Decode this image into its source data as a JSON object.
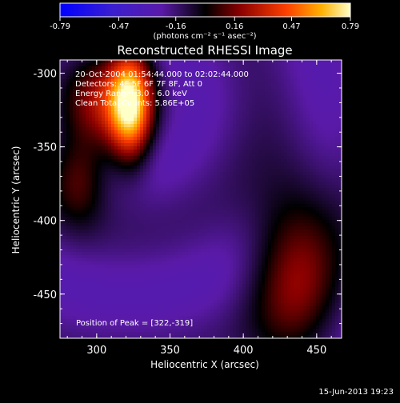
{
  "chart_data": {
    "type": "heatmap",
    "title": "Reconstructed RHESSI Image",
    "xlabel": "Heliocentric X (arcsec)",
    "ylabel": "Heliocentric Y (arcsec)",
    "xlim": [
      275,
      467
    ],
    "ylim": [
      -480,
      -291
    ],
    "xticks": [
      300,
      350,
      400,
      450
    ],
    "yticks": [
      -300,
      -350,
      -400,
      -450
    ],
    "annotations": [
      "20-Oct-2004 01:54:44.000 to 02:02:44.000",
      "Detectors: 4F 5F 6F 7F 8F, Att 0",
      "Energy Range: 3.0 - 6.0 keV",
      "Clean   Total Counts: 5.86E+05"
    ],
    "peak_label": "Position of Peak = [322,-319]",
    "peak": [
      322,
      -319
    ],
    "colorbar": {
      "ticks": [
        -0.79,
        -0.47,
        -0.16,
        0.16,
        0.47,
        0.79
      ],
      "range": [
        -0.79,
        0.79
      ],
      "unit_label": "(photons cm⁻² s⁻¹ asec⁻²)"
    },
    "sources": [
      {
        "x": 323,
        "y": -322,
        "sx": 10,
        "sy": 26,
        "amp": 0.79
      },
      {
        "x": 302,
        "y": -318,
        "sx": 22,
        "sy": 24,
        "amp": 0.45
      },
      {
        "x": 288,
        "y": -372,
        "sx": 14,
        "sy": 22,
        "amp": 0.3
      },
      {
        "x": 435,
        "y": -430,
        "sx": 22,
        "sy": 50,
        "amp": 0.38
      }
    ]
  },
  "footer": {
    "timestamp": "15-Jun-2013 19:23"
  }
}
